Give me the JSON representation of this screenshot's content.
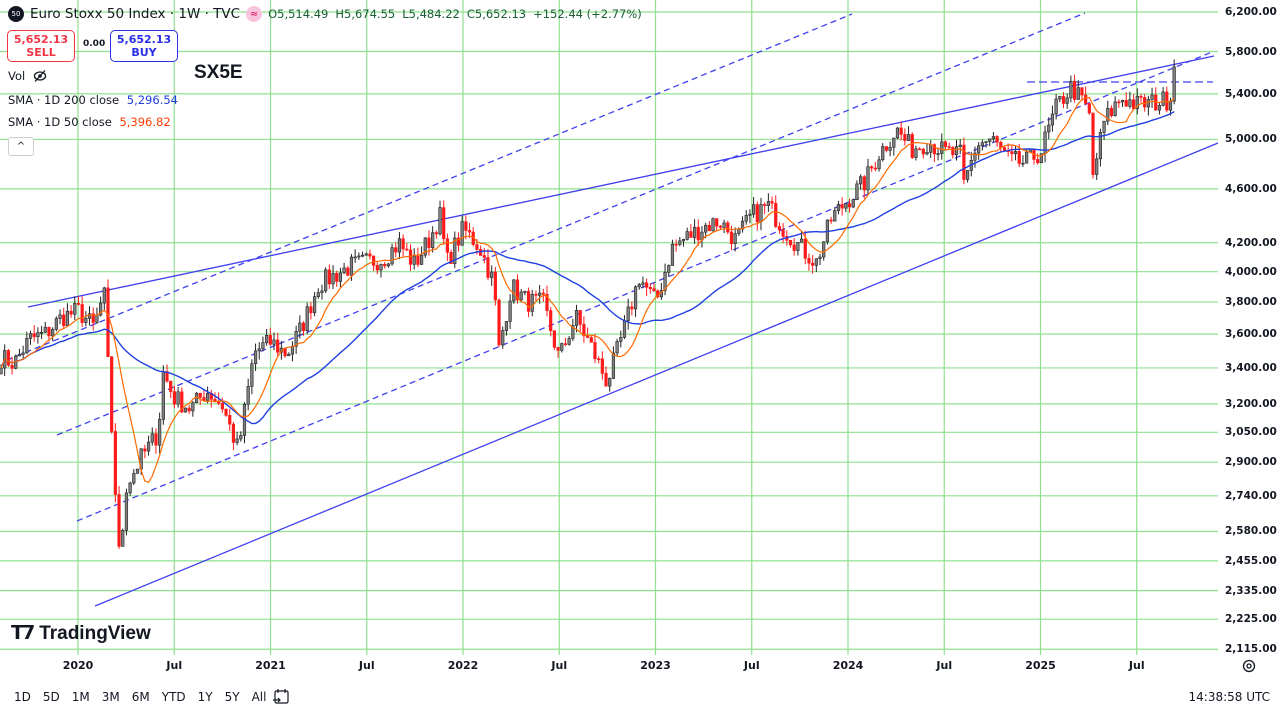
{
  "header": {
    "logo_text": "50",
    "title": "Euro Stoxx 50 Index · 1W · TVC",
    "flag_icon": "≈",
    "open": "O5,514.49",
    "high": "H5,674.55",
    "low": "L5,484.22",
    "close": "C5,652.13",
    "change": "+152.44 (+2.77%)"
  },
  "trade": {
    "sell_price": "5,652.13",
    "sell_label": "SELL",
    "spread": "0.00",
    "buy_price": "5,652.13",
    "buy_label": "BUY"
  },
  "symbol_label": "SX5E",
  "indicators": {
    "vol_label": "Vol",
    "sma200_label": "SMA · 1D 200 close",
    "sma200_value": "5,296.54",
    "sma50_label": "SMA · 1D 50 close",
    "sma50_value": "5,396.82",
    "collapse": "^"
  },
  "colors": {
    "up": "#808080",
    "down": "#ff1a1a",
    "sma_fast": "#ff6a00",
    "sma_slow": "#1f3fe0",
    "trend": "#4040f0",
    "grid": "#8fe08f",
    "sma200_text": "#1f3fe0",
    "sma50_text": "#ff3b00"
  },
  "branding": "TradingView",
  "bottom": {
    "ranges": [
      "1D",
      "5D",
      "1M",
      "3M",
      "6M",
      "YTD",
      "1Y",
      "5Y",
      "All"
    ],
    "clock": "14:38:58 UTC"
  },
  "chart_data": {
    "type": "candlestick",
    "timeframe": "1W",
    "scale": "log",
    "ylim": [
      2115,
      6200
    ],
    "grid": true,
    "y_ticks": [
      "6,200.00",
      "5,800.00",
      "5,400.00",
      "5,000.00",
      "4,600.00",
      "4,200.00",
      "4,000.00",
      "3,800.00",
      "3,600.00",
      "3,400.00",
      "3,200.00",
      "3,050.00",
      "2,900.00",
      "2,740.00",
      "2,580.00",
      "2,455.00",
      "2,335.00",
      "2,225.00",
      "2,115.00"
    ],
    "y_tick_values": [
      6200,
      5800,
      5400,
      5000,
      4600,
      4200,
      4000,
      3800,
      3600,
      3400,
      3200,
      3050,
      2900,
      2740,
      2580,
      2455,
      2335,
      2225,
      2115
    ],
    "x_ticks": [
      {
        "label": "2020",
        "t": 2020.0
      },
      {
        "label": "Jul",
        "t": 2020.5
      },
      {
        "label": "2021",
        "t": 2021.0
      },
      {
        "label": "Jul",
        "t": 2021.5
      },
      {
        "label": "2022",
        "t": 2022.0
      },
      {
        "label": "Jul",
        "t": 2022.5
      },
      {
        "label": "2023",
        "t": 2023.0
      },
      {
        "label": "Jul",
        "t": 2023.5
      },
      {
        "label": "2024",
        "t": 2024.0
      },
      {
        "label": "Jul",
        "t": 2024.5
      },
      {
        "label": "2025",
        "t": 2025.0
      },
      {
        "label": "Jul",
        "t": 2025.5
      }
    ],
    "series_sma": [
      {
        "name": "SMA fast",
        "weeks": 10
      },
      {
        "name": "SMA slow",
        "weeks": 40
      }
    ],
    "closes": [
      [
        "2019-07-31",
        3467
      ],
      [
        "2019-08-31",
        3427
      ],
      [
        "2019-09-30",
        3569
      ],
      [
        "2019-10-31",
        3604
      ],
      [
        "2019-11-30",
        3704
      ],
      [
        "2019-12-31",
        3745
      ],
      [
        "2020-01-31",
        3640
      ],
      [
        "2020-02-19",
        3865
      ],
      [
        "2020-02-28",
        3329
      ],
      [
        "2020-03-18",
        2450
      ],
      [
        "2020-03-31",
        2787
      ],
      [
        "2020-04-30",
        2928
      ],
      [
        "2020-05-31",
        3050
      ],
      [
        "2020-06-08",
        3384
      ],
      [
        "2020-06-30",
        3234
      ],
      [
        "2020-07-31",
        3174
      ],
      [
        "2020-08-31",
        3273
      ],
      [
        "2020-09-30",
        3194
      ],
      [
        "2020-10-30",
        2958
      ],
      [
        "2020-11-30",
        3493
      ],
      [
        "2020-12-31",
        3553
      ],
      [
        "2021-01-31",
        3481
      ],
      [
        "2021-02-28",
        3636
      ],
      [
        "2021-03-31",
        3919
      ],
      [
        "2021-04-30",
        3975
      ],
      [
        "2021-05-31",
        4039
      ],
      [
        "2021-06-30",
        4064
      ],
      [
        "2021-07-31",
        4089
      ],
      [
        "2021-08-31",
        4196
      ],
      [
        "2021-09-30",
        4048
      ],
      [
        "2021-10-31",
        4250
      ],
      [
        "2021-11-17",
        4400
      ],
      [
        "2021-11-30",
        4063
      ],
      [
        "2021-12-31",
        4298
      ],
      [
        "2022-01-31",
        4175
      ],
      [
        "2022-02-28",
        3924
      ],
      [
        "2022-03-07",
        3500
      ],
      [
        "2022-03-31",
        3903
      ],
      [
        "2022-04-30",
        3803
      ],
      [
        "2022-05-31",
        3789
      ],
      [
        "2022-06-30",
        3455
      ],
      [
        "2022-07-31",
        3708
      ],
      [
        "2022-08-31",
        3517
      ],
      [
        "2022-09-30",
        3318
      ],
      [
        "2022-10-31",
        3618
      ],
      [
        "2022-11-30",
        3965
      ],
      [
        "2022-12-31",
        3794
      ],
      [
        "2023-01-31",
        4163
      ],
      [
        "2023-02-28",
        4238
      ],
      [
        "2023-03-31",
        4315
      ],
      [
        "2023-04-30",
        4359
      ],
      [
        "2023-05-31",
        4218
      ],
      [
        "2023-06-30",
        4399
      ],
      [
        "2023-07-31",
        4471
      ],
      [
        "2023-08-31",
        4297
      ],
      [
        "2023-09-30",
        4174
      ],
      [
        "2023-10-31",
        4061
      ],
      [
        "2023-11-30",
        4382
      ],
      [
        "2023-12-31",
        4521
      ],
      [
        "2024-01-31",
        4648
      ],
      [
        "2024-02-28",
        4878
      ],
      [
        "2024-03-31",
        5083
      ],
      [
        "2024-04-30",
        4921
      ],
      [
        "2024-05-31",
        4984
      ],
      [
        "2024-06-30",
        4894
      ],
      [
        "2024-07-31",
        4873
      ],
      [
        "2024-08-05",
        4600
      ],
      [
        "2024-08-31",
        4958
      ],
      [
        "2024-09-30",
        5000
      ],
      [
        "2024-10-31",
        4827
      ],
      [
        "2024-11-30",
        4804
      ],
      [
        "2024-12-31",
        4896
      ],
      [
        "2025-01-31",
        5287
      ],
      [
        "2025-02-28",
        5464
      ],
      [
        "2025-03-31",
        5248
      ],
      [
        "2025-04-08",
        4700
      ],
      [
        "2025-04-30",
        5160
      ],
      [
        "2025-05-31",
        5367
      ],
      [
        "2025-06-30",
        5303
      ],
      [
        "2025-07-31",
        5320
      ],
      [
        "2025-08-31",
        5350
      ],
      [
        "2025-09-15",
        5652
      ]
    ]
  }
}
